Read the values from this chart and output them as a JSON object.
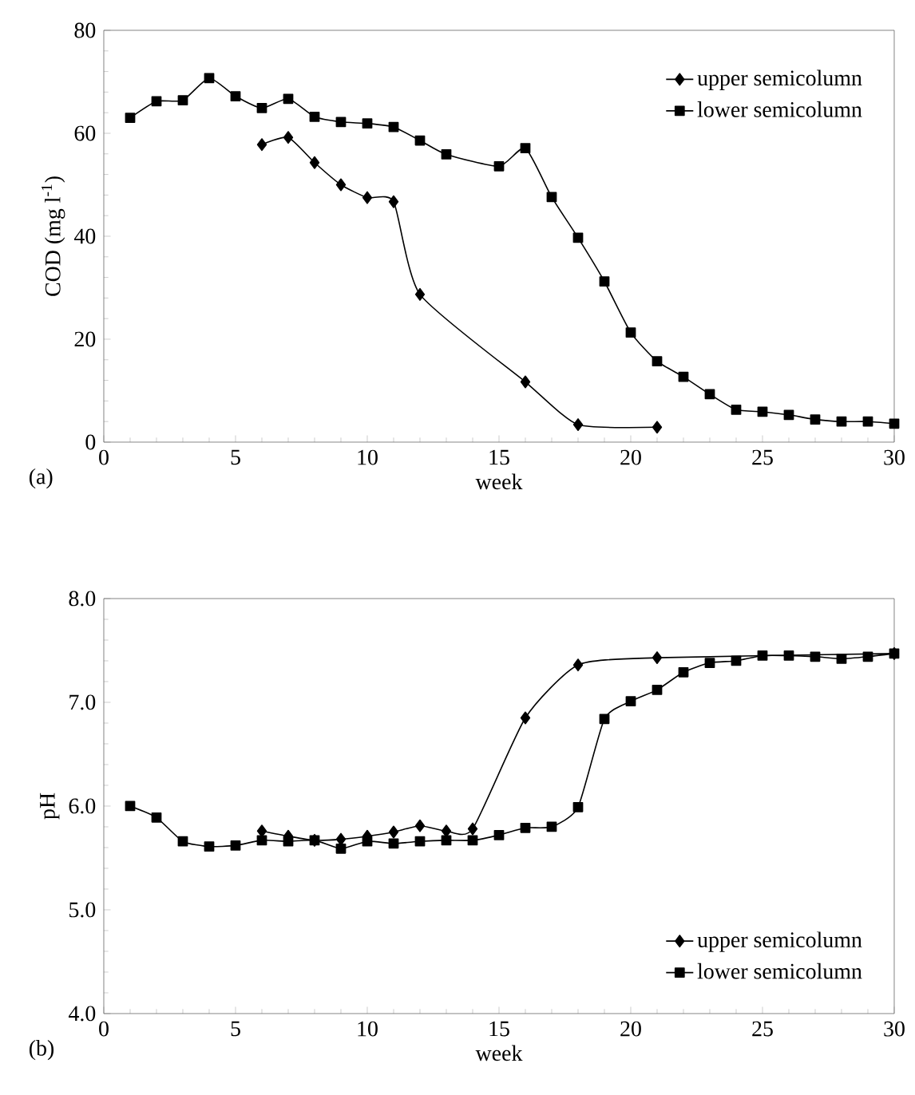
{
  "chart_data": [
    {
      "type": "line",
      "xlabel": "week",
      "ylabel": "COD (mg l$^{-1}$)",
      "annotations": [
        "(a)"
      ],
      "xlim": [
        0,
        30
      ],
      "xticks": [
        0,
        5,
        10,
        15,
        20,
        25,
        30
      ],
      "ylim": [
        0,
        80
      ],
      "yticks": [
        0,
        20,
        40,
        60,
        80
      ],
      "legend": "top right",
      "grid": false,
      "series": [
        {
          "name": "upper semicolumn",
          "color": "#000000",
          "marker": "diamond",
          "x": [
            6,
            7,
            8,
            9,
            10,
            11,
            12,
            16,
            18,
            21
          ],
          "values": [
            57.8,
            59.2,
            54.3,
            50.0,
            47.5,
            46.7,
            28.7,
            11.7,
            3.4,
            2.9
          ]
        },
        {
          "name": "lower semicolumn",
          "color": "#000000",
          "marker": "square",
          "x": [
            1,
            2,
            3,
            4,
            5,
            6,
            7,
            8,
            9,
            10,
            11,
            12,
            13,
            15,
            16,
            17,
            18,
            19,
            20,
            21,
            22,
            23,
            24,
            25,
            26,
            27,
            28,
            29,
            30
          ],
          "values": [
            63.0,
            66.2,
            66.4,
            70.7,
            67.2,
            64.9,
            66.7,
            63.2,
            62.2,
            61.9,
            61.2,
            58.6,
            55.9,
            53.6,
            57.1,
            47.6,
            39.7,
            31.2,
            21.3,
            15.7,
            12.7,
            9.3,
            6.3,
            5.9,
            5.3,
            4.4,
            4.0,
            4.0,
            3.6
          ]
        }
      ]
    },
    {
      "type": "line",
      "xlabel": "week",
      "ylabel": "pH",
      "annotations": [
        "(b)"
      ],
      "xlim": [
        0,
        30
      ],
      "xticks": [
        0,
        5,
        10,
        15,
        20,
        25,
        30
      ],
      "ylim": [
        4,
        8
      ],
      "yticks": [
        {
          "value": 4,
          "label": "4.0"
        },
        {
          "value": 5,
          "label": "5.0"
        },
        {
          "value": 6,
          "label": "6.0"
        },
        {
          "value": 7,
          "label": "7.0"
        },
        {
          "value": 8,
          "label": "8.0"
        }
      ],
      "legend": "bottom right",
      "grid": false,
      "series": [
        {
          "name": "upper semicolumn",
          "color": "#000000",
          "marker": "diamond",
          "x": [
            6,
            7,
            8,
            9,
            10,
            11,
            12,
            13,
            14,
            16,
            18,
            21,
            30
          ],
          "values": [
            5.76,
            5.71,
            5.67,
            5.68,
            5.71,
            5.75,
            5.81,
            5.76,
            5.78,
            6.85,
            7.36,
            7.43,
            7.47
          ]
        },
        {
          "name": "lower semicolumn",
          "color": "#000000",
          "marker": "square",
          "x": [
            1,
            2,
            3,
            4,
            5,
            6,
            7,
            8,
            9,
            10,
            11,
            12,
            13,
            14,
            15,
            16,
            17,
            18,
            19,
            20,
            21,
            22,
            23,
            24,
            25,
            26,
            27,
            28,
            29,
            30
          ],
          "values": [
            6.0,
            5.89,
            5.66,
            5.61,
            5.62,
            5.67,
            5.66,
            5.67,
            5.59,
            5.66,
            5.64,
            5.66,
            5.67,
            5.67,
            5.72,
            5.79,
            5.8,
            5.99,
            6.84,
            7.01,
            7.12,
            7.29,
            7.38,
            7.4,
            7.45,
            7.45,
            7.44,
            7.42,
            7.44,
            7.47
          ]
        }
      ]
    }
  ]
}
